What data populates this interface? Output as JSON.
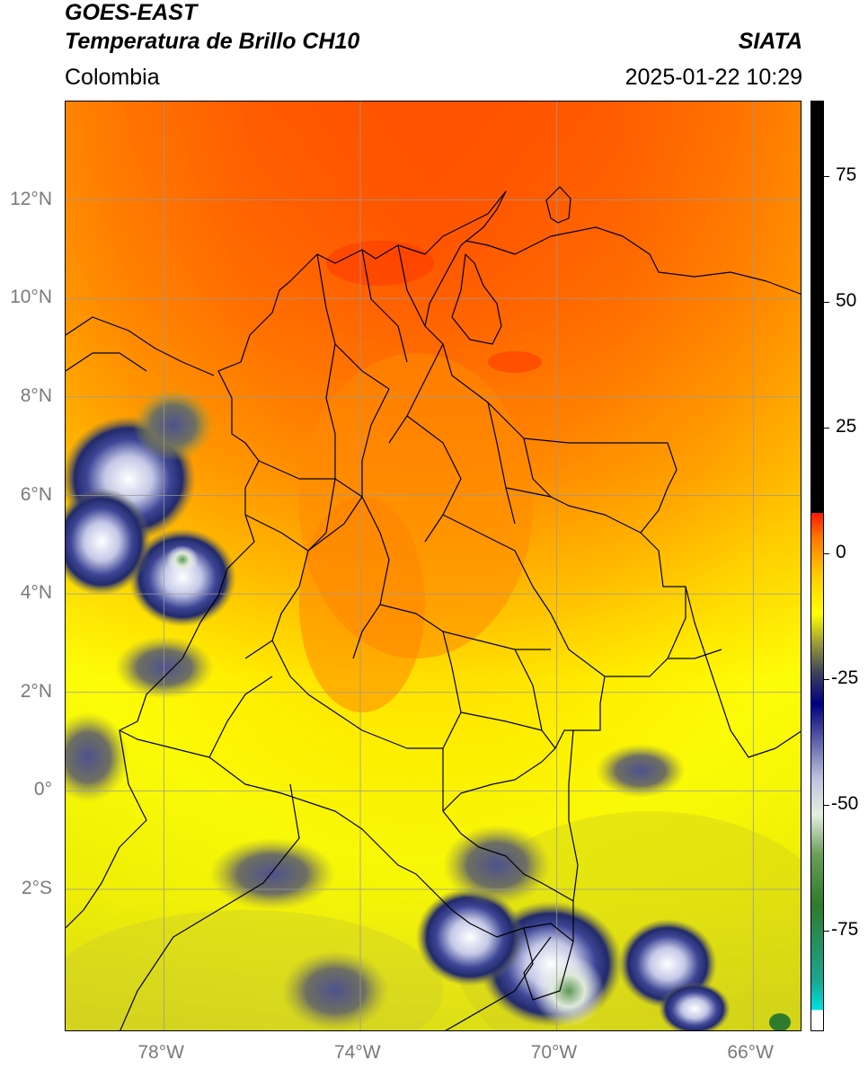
{
  "header": {
    "satellite": "GOES-EAST",
    "product": "Temperatura de Brillo CH10",
    "region": "Colombia",
    "agency": "SIATA",
    "datetime": "2025-01-22 10:29"
  },
  "map": {
    "lon_range": [
      -80,
      -65
    ],
    "lat_range": [
      -4.9,
      14
    ],
    "lat_ticks": [
      {
        "value": 12,
        "label": "12°N"
      },
      {
        "value": 10,
        "label": "10°N"
      },
      {
        "value": 8,
        "label": "8°N"
      },
      {
        "value": 6,
        "label": "6°N"
      },
      {
        "value": 4,
        "label": "4°N"
      },
      {
        "value": 2,
        "label": "2°N"
      },
      {
        "value": 0,
        "label": "0°"
      },
      {
        "value": -2,
        "label": "2°S"
      }
    ],
    "lon_ticks": [
      {
        "value": -78,
        "label": "78°W"
      },
      {
        "value": -74,
        "label": "74°W"
      },
      {
        "value": -70,
        "label": "70°W"
      },
      {
        "value": -66,
        "label": "66°W"
      }
    ],
    "gridlines": true,
    "gridline_color": "#999999"
  },
  "colorbar": {
    "range": [
      -95,
      90
    ],
    "ticks": [
      {
        "value": 75,
        "label": "75"
      },
      {
        "value": 50,
        "label": "50"
      },
      {
        "value": 25,
        "label": "25"
      },
      {
        "value": 0,
        "label": "0"
      },
      {
        "value": -25,
        "label": "-25"
      },
      {
        "value": -50,
        "label": "-50"
      },
      {
        "value": -75,
        "label": "-75"
      }
    ],
    "stops": [
      {
        "value": -95,
        "color": "#ffffff"
      },
      {
        "value": -91,
        "color": "#ffffff"
      },
      {
        "value": -90.9,
        "color": "#00e0e0"
      },
      {
        "value": -85,
        "color": "#1aa68f"
      },
      {
        "value": -70,
        "color": "#2f7b2c"
      },
      {
        "value": -60,
        "color": "#6a9e59"
      },
      {
        "value": -52,
        "color": "#e4eee0"
      },
      {
        "value": -45,
        "color": "#c0c4e0"
      },
      {
        "value": -37,
        "color": "#585ea8"
      },
      {
        "value": -30,
        "color": "#000080"
      },
      {
        "value": -24,
        "color": "#3a3f5e"
      },
      {
        "value": -18,
        "color": "#9a9a38"
      },
      {
        "value": -12,
        "color": "#ffff00"
      },
      {
        "value": -4,
        "color": "#ffc800"
      },
      {
        "value": 3,
        "color": "#ff7a00"
      },
      {
        "value": 8,
        "color": "#ff1a00"
      },
      {
        "value": 8.1,
        "color": "#000000"
      },
      {
        "value": 90,
        "color": "#000000"
      }
    ]
  }
}
